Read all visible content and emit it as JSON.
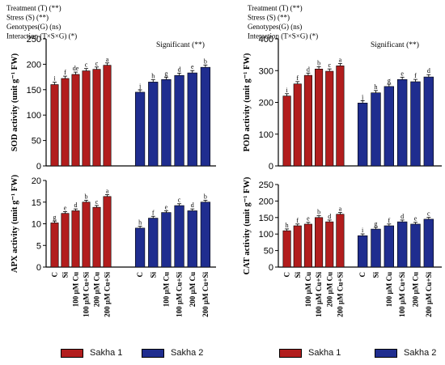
{
  "colors": {
    "sakha1": "#b21d1d",
    "sakha2": "#1f2d8f"
  },
  "legend": [
    {
      "label": "Sakha 1",
      "color": "#b21d1d"
    },
    {
      "label": "Sakha 2",
      "color": "#1f2d8f"
    }
  ],
  "chart_data": [
    {
      "id": "sod",
      "type": "bar",
      "ylabel": "SOD activity (unit g⁻¹ FW)",
      "ylim": [
        0,
        250
      ],
      "yticks": [
        0,
        50,
        100,
        150,
        200,
        250
      ],
      "categories": [
        "C",
        "Si",
        "100 µM Cu",
        "100 µM Cu+Si",
        "200 µM Cu",
        "200 µM Cu+Si"
      ],
      "show_category_labels": false,
      "series": [
        {
          "name": "Sakha 1",
          "values": [
            160,
            172,
            180,
            187,
            190,
            198
          ],
          "letters": [
            "i",
            "f",
            "de",
            "c",
            "c",
            "a"
          ]
        },
        {
          "name": "Sakha 2",
          "values": [
            145,
            165,
            170,
            178,
            183,
            194
          ],
          "letters": [
            "j",
            "h",
            "g",
            "d",
            "e",
            "b"
          ]
        }
      ],
      "annotations": [
        "Treatment (T) (**)",
        "Stress (S) (**)",
        "Genotypes(G) (ns)",
        "Interaction (T×S×G) (*)"
      ],
      "significance_label": "Significant (**)"
    },
    {
      "id": "pod",
      "type": "bar",
      "ylabel": "POD activity (unit g⁻¹ FW)",
      "ylim": [
        0,
        400
      ],
      "yticks": [
        0,
        100,
        200,
        300,
        400
      ],
      "categories": [
        "C",
        "Si",
        "100 µM Cu",
        "100 µM Cu+Si",
        "200 µM Cu",
        "200 µM Cu+Si"
      ],
      "show_category_labels": false,
      "series": [
        {
          "name": "Sakha 1",
          "values": [
            220,
            258,
            285,
            305,
            298,
            315
          ],
          "letters": [
            "i",
            "f",
            "d",
            "b",
            "c",
            "a"
          ]
        },
        {
          "name": "Sakha 2",
          "values": [
            198,
            230,
            250,
            272,
            265,
            280
          ],
          "letters": [
            "j",
            "h",
            "g",
            "e",
            "f",
            "d"
          ]
        }
      ],
      "annotations": [
        "Treatment (T) (**)",
        "Stress (S) (**)",
        "Genotypes(G) (ns)",
        "Interaction (T×S×G) (*)"
      ],
      "significance_label": "Significant (**)"
    },
    {
      "id": "apx",
      "type": "bar",
      "ylabel": "APX activity (unit g⁻¹ FW)",
      "ylim": [
        0,
        20
      ],
      "yticks": [
        0,
        5,
        10,
        15,
        20
      ],
      "categories": [
        "C",
        "Si",
        "100 µM Cu",
        "100 µM Cu+Si",
        "200 µM Cu",
        "200 µM Cu+Si"
      ],
      "show_category_labels": true,
      "series": [
        {
          "name": "Sakha 1",
          "values": [
            10.2,
            12.4,
            13.0,
            15.0,
            13.8,
            16.3
          ],
          "letters": [
            "g",
            "e",
            "d",
            "b",
            "c",
            "a"
          ]
        },
        {
          "name": "Sakha 2",
          "values": [
            9.0,
            11.3,
            12.6,
            14.2,
            13.0,
            15.0
          ],
          "letters": [
            "h",
            "f",
            "e",
            "c",
            "d",
            "b"
          ]
        }
      ],
      "annotations": [],
      "significance_label": ""
    },
    {
      "id": "cat",
      "type": "bar",
      "ylabel": "CAT activity (unit g⁻¹ FW)",
      "ylim": [
        0,
        250
      ],
      "yticks": [
        0,
        50,
        100,
        150,
        200,
        250
      ],
      "categories": [
        "C",
        "Si",
        "100 µM Cu",
        "100 µM Cu+Si",
        "200 µM Cu",
        "200 µM Cu+Si"
      ],
      "show_category_labels": true,
      "series": [
        {
          "name": "Sakha 1",
          "values": [
            110,
            125,
            130,
            150,
            137,
            160
          ],
          "letters": [
            "h",
            "f",
            "e",
            "b",
            "d",
            "a"
          ]
        },
        {
          "name": "Sakha 2",
          "values": [
            95,
            115,
            125,
            137,
            130,
            145
          ],
          "letters": [
            "i",
            "g",
            "f",
            "d",
            "e",
            "c"
          ]
        }
      ],
      "annotations": [],
      "significance_label": ""
    }
  ]
}
